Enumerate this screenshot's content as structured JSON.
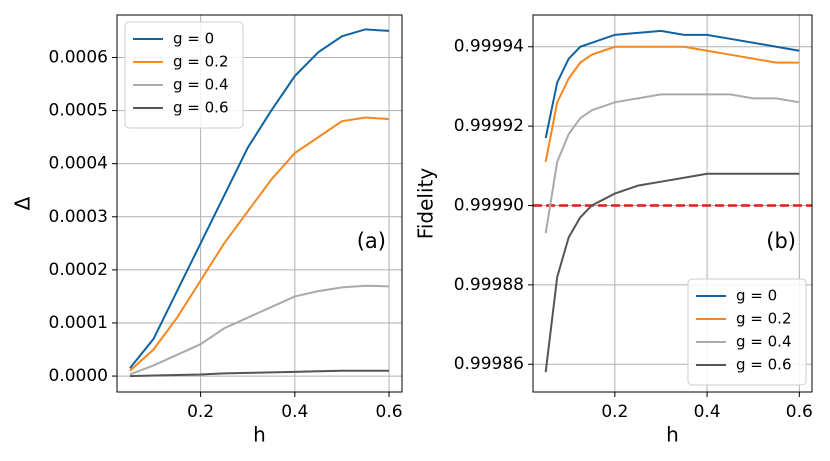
{
  "chart_data": [
    {
      "type": "line",
      "xlabel": "h",
      "ylabel": "Δ",
      "annotation": "(a)",
      "x": [
        0.05,
        0.1,
        0.15,
        0.2,
        0.25,
        0.3,
        0.35,
        0.4,
        0.45,
        0.5,
        0.55,
        0.6
      ],
      "series": [
        {
          "name": "g = 0",
          "color": "#0f63a3",
          "values": [
            1.5e-05,
            7e-05,
            0.00016,
            0.00025,
            0.00034,
            0.00043,
            0.0005,
            0.000565,
            0.00061,
            0.00064,
            0.000653,
            0.00065
          ]
        },
        {
          "name": "g = 0.2",
          "color": "#f4871e",
          "values": [
            1e-05,
            5e-05,
            0.00011,
            0.00018,
            0.00025,
            0.00031,
            0.00037,
            0.00042,
            0.00045,
            0.00048,
            0.000487,
            0.000484
          ]
        },
        {
          "name": "g = 0.4",
          "color": "#aaaaaa",
          "values": [
            3e-06,
            2e-05,
            4e-05,
            6e-05,
            9e-05,
            0.00011,
            0.00013,
            0.00015,
            0.00016,
            0.000167,
            0.00017,
            0.000169
          ]
        },
        {
          "name": "g = 0.6",
          "color": "#555555",
          "values": [
            0,
            1e-06,
            2e-06,
            3e-06,
            5e-06,
            6e-06,
            7e-06,
            8e-06,
            9e-06,
            1e-05,
            1e-05,
            1e-05
          ]
        }
      ],
      "xlim": [
        0.0225,
        0.6275
      ],
      "xticks": [
        0.2,
        0.4,
        0.6
      ],
      "ylim": [
        -3e-05,
        0.00068
      ],
      "yticks": [
        {
          "value": 0,
          "label": "0.0000"
        },
        {
          "value": 0.0001,
          "label": "0.0001"
        },
        {
          "value": 0.0002,
          "label": "0.0002"
        },
        {
          "value": 0.0003,
          "label": "0.0003"
        },
        {
          "value": 0.0004,
          "label": "0.0004"
        },
        {
          "value": 0.0005,
          "label": "0.0005"
        },
        {
          "value": 0.0006,
          "label": "0.0006"
        }
      ],
      "grid": true,
      "legend": "upper left"
    },
    {
      "type": "line",
      "xlabel": "h",
      "ylabel": "Fidelity",
      "annotation": "(b)",
      "x": [
        0.05,
        0.075,
        0.1,
        0.125,
        0.15,
        0.2,
        0.25,
        0.3,
        0.35,
        0.4,
        0.45,
        0.5,
        0.55,
        0.6
      ],
      "series": [
        {
          "name": "g = 0",
          "color": "#0f63a3",
          "values": [
            0.999917,
            0.999931,
            0.999937,
            0.99994,
            0.999941,
            0.999943,
            0.9999435,
            0.999944,
            0.999943,
            0.999943,
            0.999942,
            0.999941,
            0.99994,
            0.999939
          ]
        },
        {
          "name": "g = 0.2",
          "color": "#f4871e",
          "values": [
            0.999911,
            0.999926,
            0.999932,
            0.999936,
            0.999938,
            0.99994,
            0.99994,
            0.99994,
            0.99994,
            0.999939,
            0.999938,
            0.999937,
            0.999936,
            0.999936
          ]
        },
        {
          "name": "g = 0.4",
          "color": "#aaaaaa",
          "values": [
            0.999893,
            0.999911,
            0.999918,
            0.999922,
            0.999924,
            0.999926,
            0.999927,
            0.999928,
            0.999928,
            0.999928,
            0.999928,
            0.999927,
            0.999927,
            0.999926
          ]
        },
        {
          "name": "g = 0.6",
          "color": "#555555",
          "values": [
            0.999858,
            0.999882,
            0.999892,
            0.999897,
            0.9999,
            0.999903,
            0.999905,
            0.999906,
            0.999907,
            0.999908,
            0.999908,
            0.999908,
            0.999908,
            0.999908
          ]
        }
      ],
      "hlines": [
        {
          "y": 0.9999,
          "color": "#e41a1c",
          "style": "dashed"
        }
      ],
      "xlim": [
        0.0225,
        0.6275
      ],
      "xticks": [
        0.2,
        0.4,
        0.6
      ],
      "ylim": [
        0.999853,
        0.999948
      ],
      "yticks": [
        0.99986,
        0.99988,
        {
          "value": 0.9999,
          "label": "0.99990"
        },
        0.99992,
        0.99994
      ],
      "grid": true,
      "legend": "lower right"
    }
  ]
}
